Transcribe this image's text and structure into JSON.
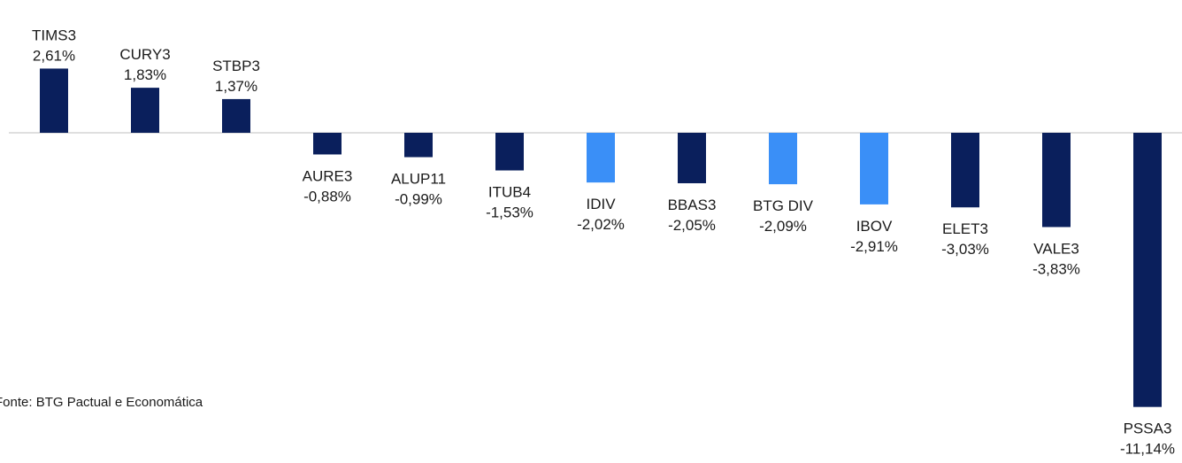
{
  "source_note": "Fonte: BTG Pactual e Economática",
  "chart_data": {
    "type": "bar",
    "title": "",
    "xlabel": "",
    "ylabel": "",
    "categories": [
      "TIMS3",
      "CURY3",
      "STBP3",
      "AURE3",
      "ALUP11",
      "ITUB4",
      "IDIV",
      "BBAS3",
      "BTG DIV",
      "IBOV",
      "ELET3",
      "VALE3",
      "PSSA3"
    ],
    "values": [
      2.61,
      1.83,
      1.37,
      -0.88,
      -0.99,
      -1.53,
      -2.02,
      -2.05,
      -2.09,
      -2.91,
      -3.03,
      -3.83,
      -11.14
    ],
    "value_labels": [
      "2,61%",
      "1,83%",
      "1,37%",
      "-0,88%",
      "-0,99%",
      "-1,53%",
      "-2,02%",
      "-2,05%",
      "-2,09%",
      "-2,91%",
      "-3,03%",
      "-3,83%",
      "-11,14%"
    ],
    "highlighted": [
      "IDIV",
      "BTG DIV",
      "IBOV"
    ],
    "colors": {
      "default": "#0a1f5c",
      "highlight": "#3a8ff7",
      "axis": "#bfbfbf"
    },
    "grid": false,
    "legend": "none"
  }
}
